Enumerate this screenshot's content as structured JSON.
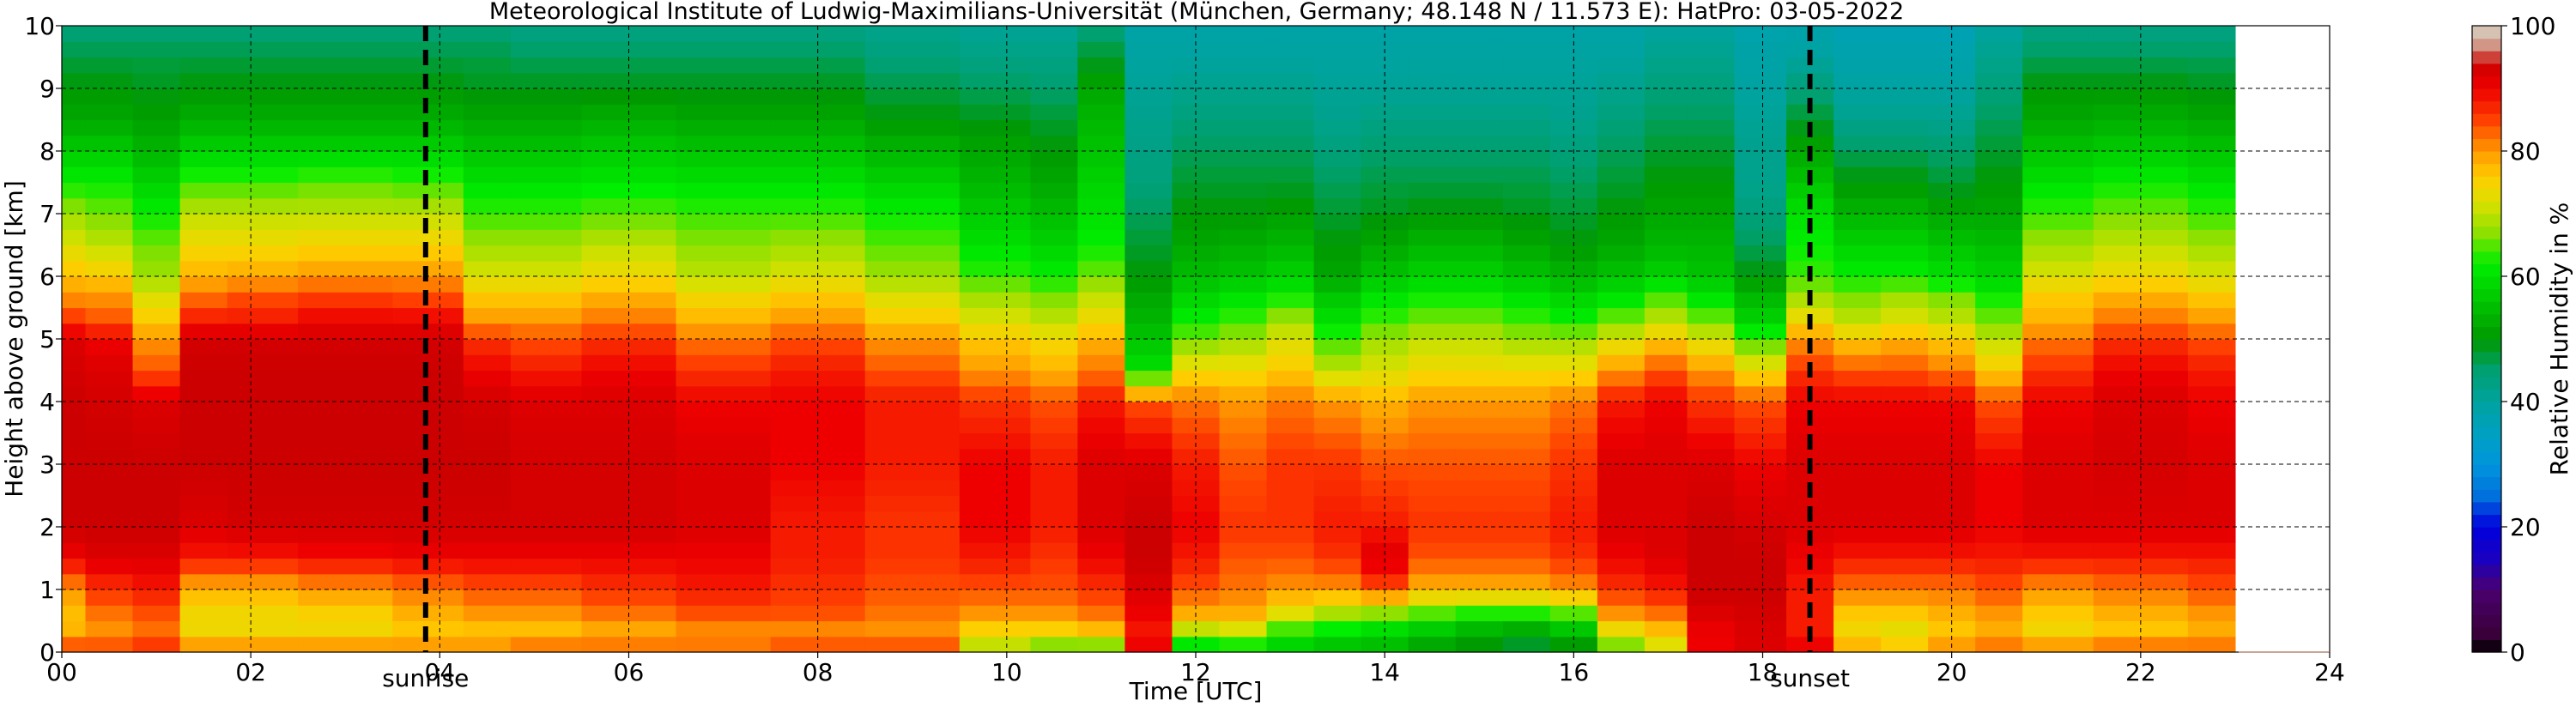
{
  "chart_data": {
    "type": "heatmap",
    "title": "Meteorological Institute of Ludwig-Maximilians-Universität (München, Germany; 48.148 N / 11.573 E):    HatPro: 03-05-2022",
    "xlabel": "Time [UTC]",
    "ylabel": "Height above ground [km]",
    "colorbar_label": "Relative Humidity in %",
    "xlim": [
      0,
      24
    ],
    "ylim": [
      0,
      10
    ],
    "data_end_time": 23.0,
    "x_ticks": [
      0,
      2,
      4,
      6,
      8,
      10,
      12,
      14,
      16,
      18,
      20,
      22,
      24
    ],
    "x_tick_labels": [
      "00",
      "02",
      "04",
      "06",
      "08",
      "10",
      "12",
      "14",
      "16",
      "18",
      "20",
      "22",
      "24"
    ],
    "y_ticks": [
      0,
      1,
      2,
      3,
      4,
      5,
      6,
      7,
      8,
      9,
      10
    ],
    "y_tick_labels": [
      "0",
      "1",
      "2",
      "3",
      "4",
      "5",
      "6",
      "7",
      "8",
      "9",
      "10"
    ],
    "colorbar_ticks": [
      0,
      20,
      40,
      60,
      80,
      100
    ],
    "colorbar_tick_labels": [
      "0",
      "20",
      "40",
      "60",
      "80",
      "100"
    ],
    "grid": true,
    "colorbar_position": "right",
    "colormap_stops": [
      {
        "value": 0,
        "color": "#000000"
      },
      {
        "value": 3,
        "color": "#3a003a"
      },
      {
        "value": 10,
        "color": "#4a0070"
      },
      {
        "value": 15,
        "color": "#1a00c0"
      },
      {
        "value": 20,
        "color": "#0000dd"
      },
      {
        "value": 25,
        "color": "#0070dd"
      },
      {
        "value": 30,
        "color": "#0095dd"
      },
      {
        "value": 35,
        "color": "#00a0c0"
      },
      {
        "value": 40,
        "color": "#00a3a0"
      },
      {
        "value": 45,
        "color": "#00a070"
      },
      {
        "value": 50,
        "color": "#009900"
      },
      {
        "value": 57,
        "color": "#00cc00"
      },
      {
        "value": 62,
        "color": "#00ee00"
      },
      {
        "value": 67,
        "color": "#8ee000"
      },
      {
        "value": 72,
        "color": "#dde000"
      },
      {
        "value": 76,
        "color": "#ffcc00"
      },
      {
        "value": 80,
        "color": "#ff9900"
      },
      {
        "value": 85,
        "color": "#ff4000"
      },
      {
        "value": 90,
        "color": "#ee0000"
      },
      {
        "value": 94,
        "color": "#cc0000"
      },
      {
        "value": 96,
        "color": "#d08070"
      },
      {
        "value": 100,
        "color": "#d8d8c8"
      }
    ],
    "profile_heights_km": [
      0,
      0.1,
      0.3,
      0.6,
      1,
      1.5,
      2,
      3,
      4,
      4.5,
      5,
      5.3,
      5.7,
      6,
      6.5,
      7,
      7.5,
      8,
      8.5,
      9,
      9.5,
      10
    ],
    "profiles": [
      {
        "time": 0.0,
        "rh": [
          90,
          84,
          78,
          77,
          80,
          90,
          94,
          94,
          94,
          93,
          92,
          86,
          80,
          77,
          72,
          68,
          62,
          57,
          52,
          50,
          47,
          44
        ]
      },
      {
        "time": 0.5,
        "rh": [
          88,
          84,
          80,
          82,
          86,
          92,
          94,
          94,
          93,
          92,
          90,
          84,
          80,
          76,
          70,
          66,
          62,
          57,
          52,
          50,
          47,
          44
        ]
      },
      {
        "time": 1.0,
        "rh": [
          92,
          86,
          82,
          84,
          88,
          92,
          94,
          94,
          92,
          84,
          80,
          76,
          72,
          68,
          66,
          62,
          58,
          54,
          51,
          49,
          47,
          44
        ]
      },
      {
        "time": 1.5,
        "rh": [
          90,
          80,
          74,
          74,
          78,
          88,
          92,
          94,
          94,
          94,
          93,
          88,
          82,
          78,
          74,
          70,
          64,
          58,
          53,
          50,
          47,
          44
        ]
      },
      {
        "time": 2.0,
        "rh": [
          90,
          80,
          74,
          74,
          78,
          88,
          93,
          94,
          94,
          94,
          93,
          88,
          84,
          79,
          74,
          70,
          64,
          58,
          53,
          50,
          47,
          44
        ]
      },
      {
        "time": 3.0,
        "rh": [
          90,
          80,
          74,
          75,
          80,
          89,
          93,
          94,
          94,
          94,
          93,
          90,
          85,
          80,
          75,
          70,
          65,
          58,
          53,
          50,
          47,
          44
        ]
      },
      {
        "time": 4.0,
        "rh": [
          90,
          80,
          76,
          78,
          82,
          90,
          93,
          94,
          94,
          94,
          93,
          90,
          84,
          80,
          75,
          70,
          64,
          58,
          53,
          50,
          47,
          44
        ]
      },
      {
        "time": 4.5,
        "rh": [
          90,
          80,
          76,
          80,
          84,
          90,
          93,
          94,
          93,
          90,
          86,
          80,
          76,
          72,
          68,
          64,
          60,
          56,
          52,
          49,
          47,
          44
        ]
      },
      {
        "time": 5.0,
        "rh": [
          90,
          82,
          76,
          80,
          84,
          90,
          93,
          93,
          92,
          88,
          84,
          80,
          76,
          72,
          68,
          64,
          60,
          56,
          52,
          49,
          46,
          43
        ]
      },
      {
        "time": 6.0,
        "rh": [
          90,
          82,
          78,
          82,
          86,
          90,
          93,
          93,
          92,
          90,
          86,
          82,
          78,
          74,
          70,
          65,
          61,
          57,
          53,
          49,
          46,
          43
        ]
      },
      {
        "time": 7.0,
        "rh": [
          90,
          82,
          80,
          84,
          88,
          90,
          92,
          92,
          90,
          86,
          82,
          78,
          74,
          70,
          67,
          64,
          60,
          56,
          52,
          49,
          46,
          43
        ]
      },
      {
        "time": 8.0,
        "rh": [
          90,
          84,
          80,
          84,
          86,
          88,
          88,
          90,
          90,
          88,
          84,
          80,
          76,
          72,
          68,
          64,
          60,
          56,
          52,
          49,
          46,
          43
        ]
      },
      {
        "time": 9.0,
        "rh": [
          90,
          84,
          80,
          82,
          84,
          86,
          86,
          88,
          88,
          84,
          80,
          76,
          72,
          68,
          65,
          62,
          58,
          54,
          50,
          47,
          44,
          42
        ]
      },
      {
        "time": 10.0,
        "rh": [
          88,
          70,
          74,
          80,
          84,
          88,
          90,
          90,
          86,
          80,
          76,
          72,
          68,
          64,
          60,
          57,
          54,
          52,
          49,
          46,
          43,
          41
        ]
      },
      {
        "time": 10.5,
        "rh": [
          86,
          66,
          74,
          80,
          84,
          86,
          88,
          88,
          84,
          78,
          74,
          70,
          66,
          62,
          58,
          55,
          52,
          50,
          48,
          45,
          43,
          41
        ]
      },
      {
        "time": 11.0,
        "rh": [
          86,
          66,
          76,
          82,
          86,
          90,
          92,
          92,
          88,
          82,
          78,
          74,
          70,
          66,
          62,
          60,
          58,
          56,
          54,
          52,
          48,
          44
        ]
      },
      {
        "time": 11.5,
        "rh": [
          94,
          90,
          88,
          90,
          92,
          94,
          94,
          92,
          84,
          60,
          56,
          54,
          52,
          50,
          48,
          46,
          44,
          43,
          42,
          41,
          40,
          39
        ]
      },
      {
        "time": 12.0,
        "rh": [
          88,
          60,
          68,
          78,
          84,
          88,
          90,
          88,
          82,
          74,
          66,
          62,
          58,
          55,
          52,
          50,
          48,
          46,
          44,
          42,
          40,
          39
        ]
      },
      {
        "time": 12.5,
        "rh": [
          84,
          62,
          70,
          78,
          82,
          84,
          86,
          84,
          80,
          74,
          68,
          64,
          60,
          56,
          53,
          50,
          48,
          46,
          44,
          42,
          40,
          39
        ]
      },
      {
        "time": 13.0,
        "rh": [
          82,
          58,
          62,
          72,
          80,
          84,
          86,
          86,
          82,
          76,
          72,
          68,
          62,
          58,
          54,
          51,
          48,
          46,
          44,
          42,
          40,
          39
        ]
      },
      {
        "time": 13.5,
        "rh": [
          82,
          56,
          60,
          68,
          80,
          86,
          88,
          86,
          80,
          70,
          64,
          60,
          56,
          52,
          50,
          48,
          46,
          44,
          42,
          41,
          40,
          39
        ]
      },
      {
        "time": 14.0,
        "rh": [
          80,
          55,
          58,
          66,
          84,
          92,
          88,
          84,
          78,
          72,
          68,
          64,
          60,
          56,
          52,
          49,
          47,
          45,
          43,
          41,
          40,
          39
        ]
      },
      {
        "time": 14.5,
        "rh": [
          80,
          52,
          55,
          64,
          78,
          84,
          86,
          84,
          80,
          74,
          70,
          66,
          62,
          58,
          54,
          50,
          47,
          45,
          43,
          41,
          40,
          39
        ]
      },
      {
        "time": 15.0,
        "rh": [
          80,
          50,
          52,
          62,
          78,
          84,
          86,
          84,
          80,
          74,
          70,
          66,
          62,
          58,
          54,
          50,
          47,
          45,
          43,
          41,
          40,
          39
        ]
      },
      {
        "time": 15.5,
        "rh": [
          80,
          48,
          50,
          62,
          78,
          84,
          86,
          84,
          80,
          74,
          68,
          64,
          60,
          56,
          52,
          49,
          47,
          45,
          43,
          41,
          40,
          39
        ]
      },
      {
        "time": 16.0,
        "rh": [
          80,
          50,
          54,
          64,
          80,
          86,
          88,
          86,
          82,
          74,
          68,
          62,
          58,
          54,
          50,
          48,
          46,
          44,
          42,
          41,
          40,
          39
        ]
      },
      {
        "time": 16.5,
        "rh": [
          82,
          66,
          72,
          80,
          86,
          90,
          92,
          92,
          88,
          80,
          72,
          66,
          60,
          56,
          52,
          50,
          48,
          46,
          44,
          42,
          40,
          39
        ]
      },
      {
        "time": 17.0,
        "rh": [
          84,
          72,
          76,
          82,
          88,
          92,
          92,
          92,
          90,
          84,
          76,
          70,
          64,
          58,
          54,
          52,
          50,
          48,
          46,
          44,
          42,
          40
        ]
      },
      {
        "time": 17.4,
        "rh": [
          92,
          90,
          90,
          92,
          94,
          94,
          94,
          92,
          86,
          80,
          72,
          66,
          60,
          56,
          54,
          52,
          50,
          48,
          46,
          44,
          42,
          40
        ]
      },
      {
        "time": 18.0,
        "rh": [
          92,
          92,
          92,
          93,
          94,
          94,
          93,
          90,
          84,
          74,
          64,
          58,
          54,
          50,
          46,
          44,
          42,
          42,
          41,
          40,
          39,
          38
        ]
      },
      {
        "time": 18.5,
        "rh": [
          92,
          90,
          88,
          88,
          88,
          90,
          92,
          92,
          90,
          86,
          80,
          74,
          68,
          64,
          62,
          60,
          56,
          52,
          48,
          44,
          40,
          38
        ]
      },
      {
        "time": 19.0,
        "rh": [
          88,
          78,
          74,
          76,
          82,
          88,
          92,
          92,
          90,
          84,
          76,
          70,
          66,
          62,
          58,
          54,
          50,
          46,
          42,
          40,
          38,
          37
        ]
      },
      {
        "time": 19.5,
        "rh": [
          88,
          76,
          72,
          76,
          82,
          88,
          92,
          92,
          90,
          84,
          78,
          72,
          68,
          62,
          58,
          54,
          50,
          46,
          42,
          40,
          38,
          37
        ]
      },
      {
        "time": 20.0,
        "rh": [
          90,
          80,
          76,
          78,
          82,
          88,
          92,
          92,
          90,
          82,
          76,
          70,
          66,
          60,
          56,
          52,
          48,
          45,
          42,
          40,
          38,
          37
        ]
      },
      {
        "time": 20.5,
        "rh": [
          90,
          82,
          78,
          80,
          84,
          88,
          90,
          90,
          84,
          76,
          70,
          66,
          62,
          58,
          55,
          52,
          50,
          48,
          46,
          44,
          42,
          40
        ]
      },
      {
        "time": 21.0,
        "rh": [
          90,
          80,
          74,
          76,
          80,
          88,
          92,
          92,
          90,
          86,
          82,
          78,
          76,
          72,
          68,
          64,
          60,
          56,
          52,
          50,
          46,
          43
        ]
      },
      {
        "time": 22.0,
        "rh": [
          90,
          82,
          76,
          78,
          82,
          88,
          92,
          93,
          92,
          90,
          86,
          82,
          78,
          74,
          70,
          66,
          62,
          57,
          53,
          50,
          46,
          43
        ]
      },
      {
        "time": 23.0,
        "rh": [
          90,
          82,
          78,
          80,
          84,
          88,
          92,
          92,
          90,
          88,
          84,
          80,
          76,
          72,
          68,
          64,
          60,
          56,
          52,
          49,
          46,
          43
        ]
      }
    ],
    "annotations": [
      {
        "text": "sunrise",
        "x": 3.85,
        "style": "thick dashed vertical line"
      },
      {
        "text": "sunset",
        "x": 18.5,
        "style": "thick dashed vertical line"
      }
    ]
  }
}
